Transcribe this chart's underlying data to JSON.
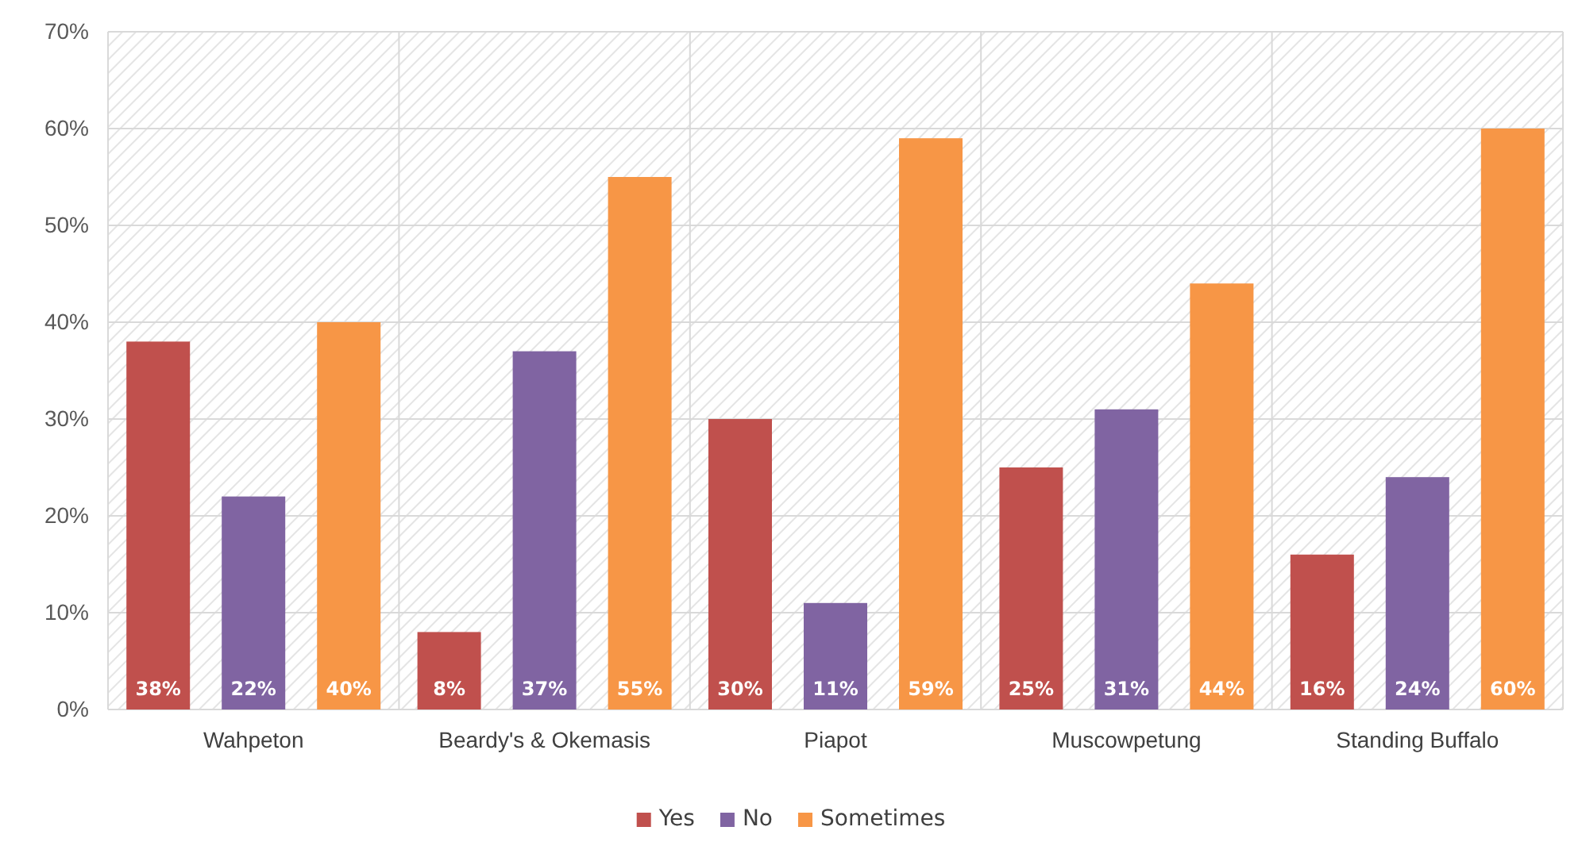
{
  "chart_data": {
    "type": "bar",
    "categories": [
      "Wahpeton",
      "Beardy's & Okemasis",
      "Piapot",
      "Muscowpetung",
      "Standing Buffalo"
    ],
    "series": [
      {
        "name": "Yes",
        "color": "#c0504d",
        "values": [
          38,
          8,
          30,
          25,
          16
        ],
        "value_labels": [
          "38%",
          "8%",
          "30%",
          "25%",
          "16%"
        ]
      },
      {
        "name": "No",
        "color": "#8064a2",
        "values": [
          22,
          37,
          11,
          31,
          24
        ],
        "value_labels": [
          "22%",
          "37%",
          "11%",
          "31%",
          "24%"
        ]
      },
      {
        "name": "Sometimes",
        "color": "#f79646",
        "values": [
          40,
          55,
          59,
          44,
          60
        ],
        "value_labels": [
          "40%",
          "55%",
          "59%",
          "44%",
          "60%"
        ]
      }
    ],
    "ylim": [
      0,
      70
    ],
    "yticks": [
      {
        "value": 0,
        "label": "0%"
      },
      {
        "value": 10,
        "label": "10%"
      },
      {
        "value": 20,
        "label": "20%"
      },
      {
        "value": 30,
        "label": "30%"
      },
      {
        "value": 40,
        "label": "40%"
      },
      {
        "value": 50,
        "label": "50%"
      },
      {
        "value": 60,
        "label": "60%"
      },
      {
        "value": 70,
        "label": "70%"
      }
    ],
    "grid": true,
    "legend": "bottom"
  }
}
